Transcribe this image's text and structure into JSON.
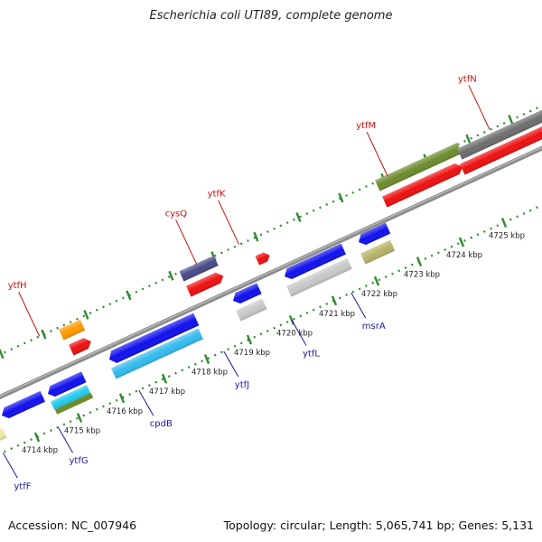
{
  "title": "Escherichia coli UTI89, complete genome",
  "footer": {
    "accession": "Accession: NC_007946",
    "info": "Topology: circular; Length: 5,065,741 bp; Genes: 5,131"
  },
  "colors": {
    "backbone": "#8c8c8c",
    "tick": "#2f8a2f",
    "label_forward": "#cc1111",
    "label_reverse": "#1a1aa0",
    "blue": "#1111ee",
    "red": "#ee1111",
    "orange": "#ff9900",
    "purple": "#4a4a8a",
    "olive": "#6e8c2e",
    "cyan": "#22ccee",
    "sky": "#33bbee",
    "khaki": "#b8b46a",
    "lightgray": "#c8c8c8",
    "darkgray": "#6e6e6e",
    "yellow": "#eee8a0"
  },
  "scale_labels": [
    {
      "kbp": 4714,
      "text": "4714 kbp"
    },
    {
      "kbp": 4715,
      "text": "4715 kbp"
    },
    {
      "kbp": 4716,
      "text": "4716 kbp"
    },
    {
      "kbp": 4717,
      "text": "4717 kbp"
    },
    {
      "kbp": 4718,
      "text": "4718 kbp"
    },
    {
      "kbp": 4719,
      "text": "4719 kbp"
    },
    {
      "kbp": 4720,
      "text": "4720 kbp"
    },
    {
      "kbp": 4721,
      "text": "4721 kbp"
    },
    {
      "kbp": 4722,
      "text": "4722 kbp"
    },
    {
      "kbp": 4723,
      "text": "4723 kbp"
    },
    {
      "kbp": 4724,
      "text": "4724 kbp"
    },
    {
      "kbp": 4725,
      "text": "4725 kbp"
    }
  ],
  "genes": [
    {
      "label": "ytfH",
      "strand": "forward",
      "kbp": 4715.0
    },
    {
      "label": "cysQ",
      "strand": "forward",
      "kbp": 4718.7
    },
    {
      "label": "ytfK",
      "strand": "forward",
      "kbp": 4719.7
    },
    {
      "label": "ytfM",
      "strand": "forward",
      "kbp": 4723.2
    },
    {
      "label": "ytfN",
      "strand": "forward",
      "kbp": 4725.6
    },
    {
      "label": "ytfF",
      "strand": "reverse",
      "kbp": 4713.2
    },
    {
      "label": "ytfG",
      "strand": "reverse",
      "kbp": 4714.5
    },
    {
      "label": "cpdB",
      "strand": "reverse",
      "kbp": 4716.4
    },
    {
      "label": "ytfJ",
      "strand": "reverse",
      "kbp": 4718.4
    },
    {
      "label": "ytfL",
      "strand": "reverse",
      "kbp": 4720.0
    },
    {
      "label": "msrA",
      "strand": "reverse",
      "kbp": 4721.4
    }
  ]
}
